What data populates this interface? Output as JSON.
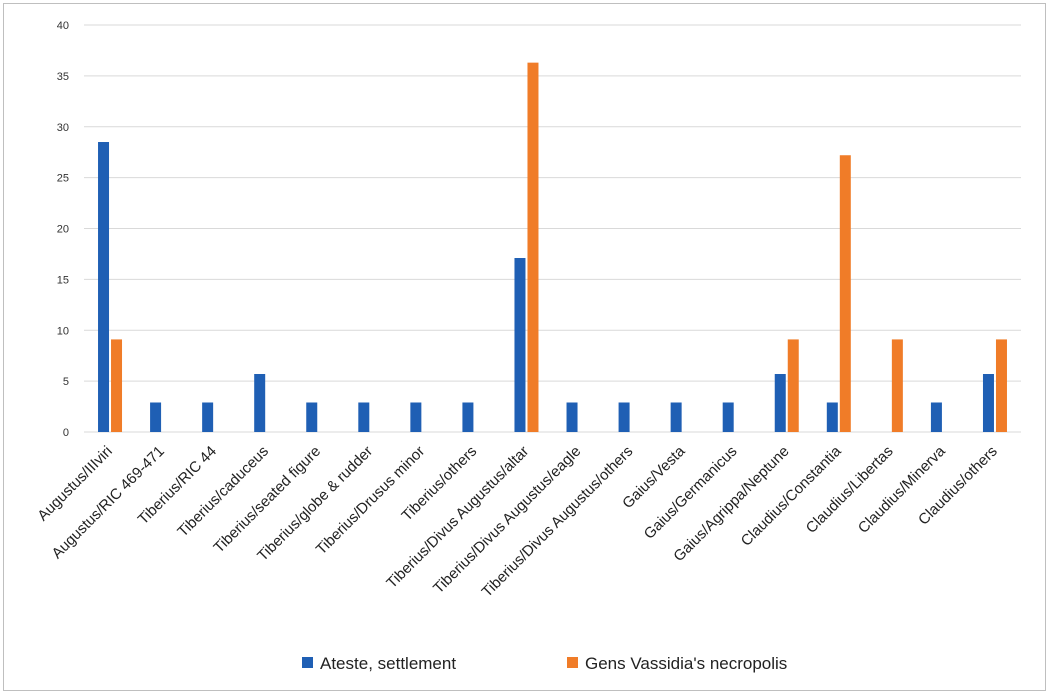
{
  "chart_data": {
    "type": "bar",
    "title": "",
    "xlabel": "",
    "ylabel": "",
    "ylim": [
      0,
      40
    ],
    "yticks": [
      0,
      5,
      10,
      15,
      20,
      25,
      30,
      35,
      40
    ],
    "grid": true,
    "legend_position": "bottom",
    "categories": [
      "Augustus/IIIviri",
      "Augustus/RIC 469-471",
      "Tiberius/RIC 44",
      "Tiberius/caduceus",
      "Tiberius/seated figure",
      "Tiberius/globe & rudder",
      "Tiberius/Drusus minor",
      "Tiberius/others",
      "Tiberius/Divus Augustus/altar",
      "Tiberius/Divus Augustus/eagle",
      "Tiberius/Divus Augustus/others",
      "Gaius/Vesta",
      "Gaius/Germanicus",
      "Gaius/Agrippa/Neptune",
      "Claudius/Constantia",
      "Claudius/Libertas",
      "Claudius/Minerva",
      "Claudius/others"
    ],
    "series": [
      {
        "name": "Ateste, settlement",
        "color": "#1f5fb4",
        "values": [
          28.5,
          2.9,
          2.9,
          5.7,
          2.9,
          2.9,
          2.9,
          2.9,
          17.1,
          2.9,
          2.9,
          2.9,
          2.9,
          5.7,
          2.9,
          0,
          2.9,
          5.7
        ]
      },
      {
        "name": "Gens Vassidia's necropolis",
        "color": "#f07c28",
        "values": [
          9.1,
          0,
          0,
          0,
          0,
          0,
          0,
          0,
          36.3,
          0,
          0,
          0,
          0,
          9.1,
          27.2,
          9.1,
          0,
          9.1
        ]
      }
    ]
  }
}
